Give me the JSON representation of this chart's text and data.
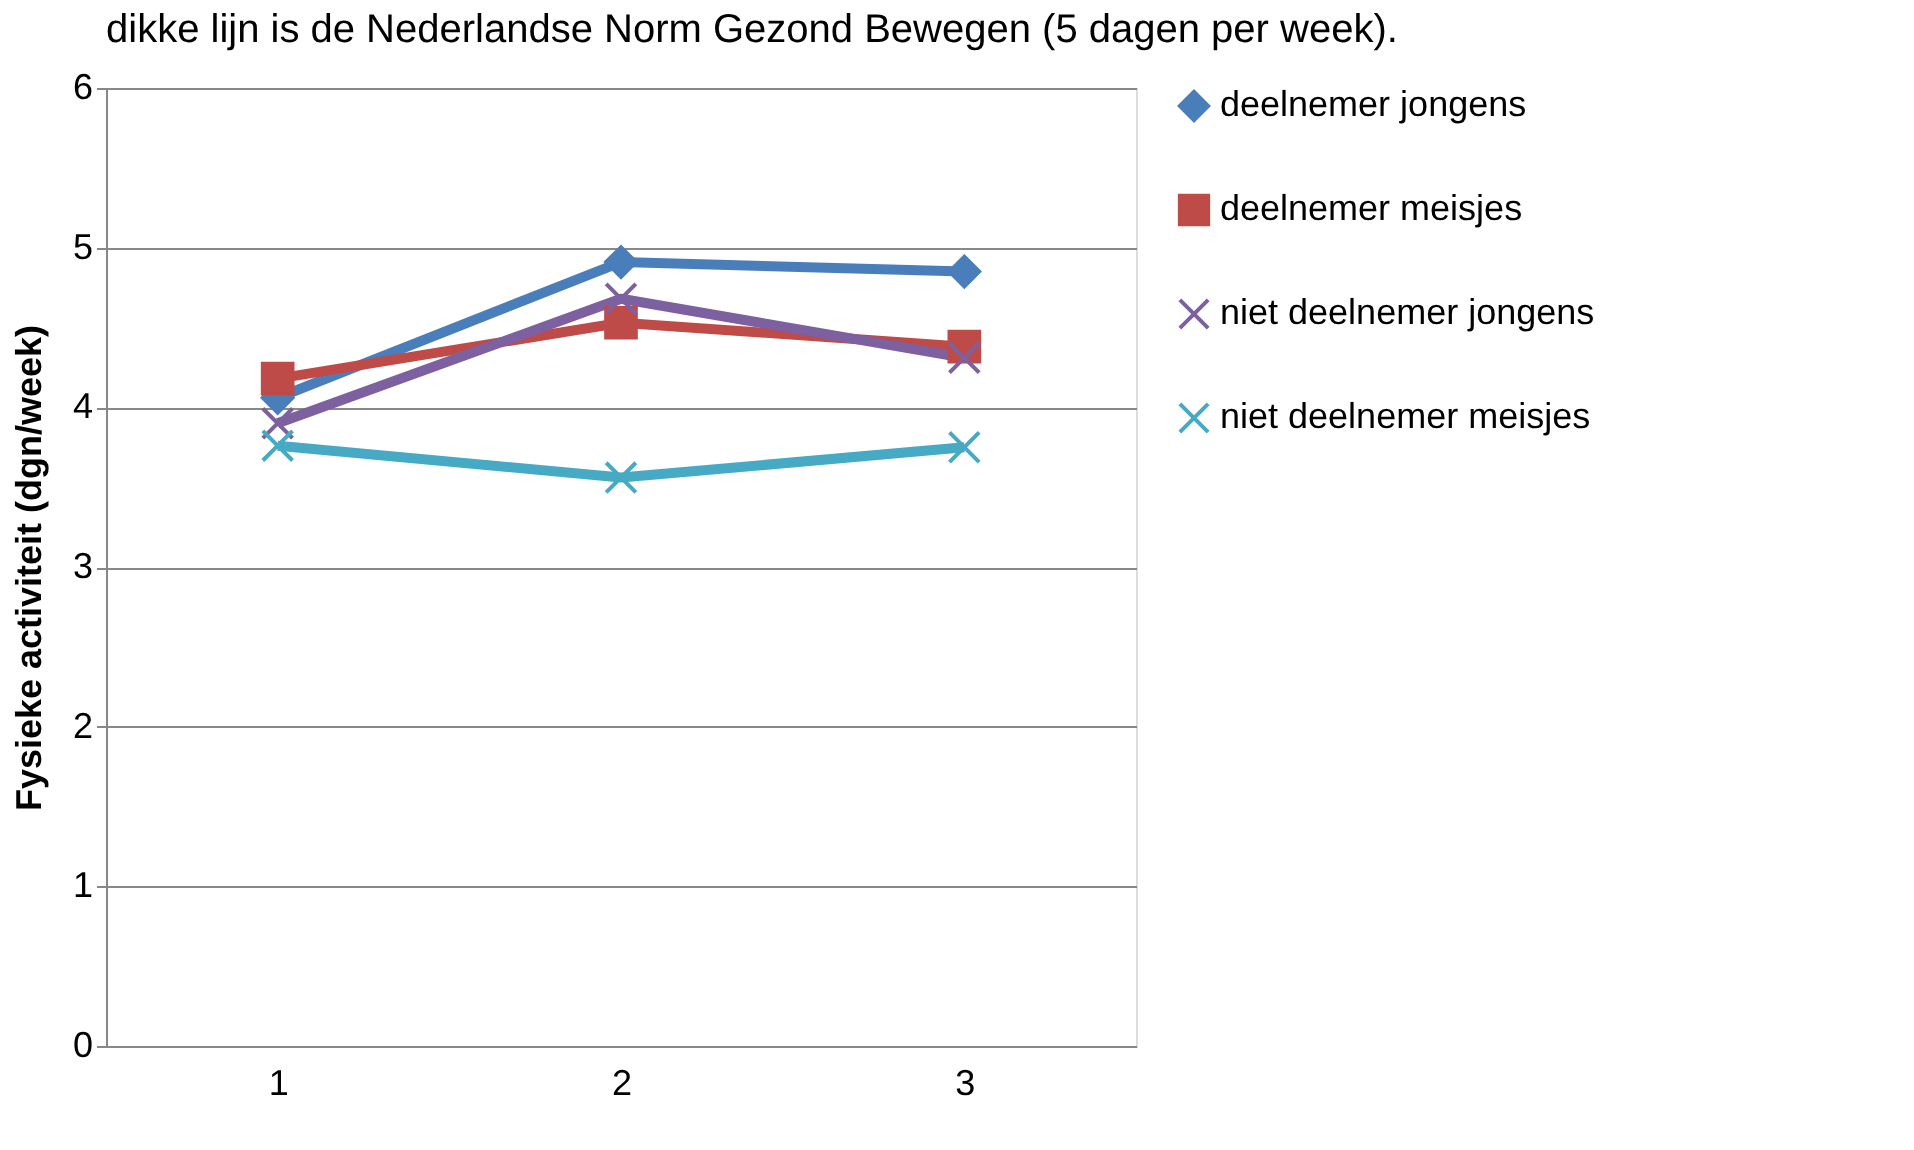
{
  "chart_data": {
    "type": "line",
    "ylabel": "Fysieke activiteit (dgn/week)",
    "annotations": [
      "dikke lijn is de Nederlandse Norm Gezond Bewegen (5 dagen per week)."
    ],
    "categories": [
      "1",
      "2",
      "3"
    ],
    "series": [
      {
        "name": "deelnemer jongens",
        "color": "#4a7ebb",
        "marker": "diamond",
        "values": [
          4.06,
          4.91,
          4.85
        ]
      },
      {
        "name": "deelnemer meisjes",
        "color": "#be4b48",
        "marker": "square",
        "values": [
          4.18,
          4.53,
          4.38
        ]
      },
      {
        "name": "niet deelnemer jongens",
        "color": "#7d60a0",
        "marker": "cross",
        "values": [
          3.9,
          4.68,
          4.31
        ]
      },
      {
        "name": "niet deelnemer meisjes",
        "color": "#46aac5",
        "marker": "cross",
        "values": [
          3.76,
          3.56,
          3.75
        ]
      }
    ],
    "ylim": [
      0,
      6
    ],
    "yticks": [
      0,
      1,
      2,
      3,
      4,
      5,
      6
    ],
    "grid": "y",
    "legend": "right",
    "line_style": "solid"
  }
}
